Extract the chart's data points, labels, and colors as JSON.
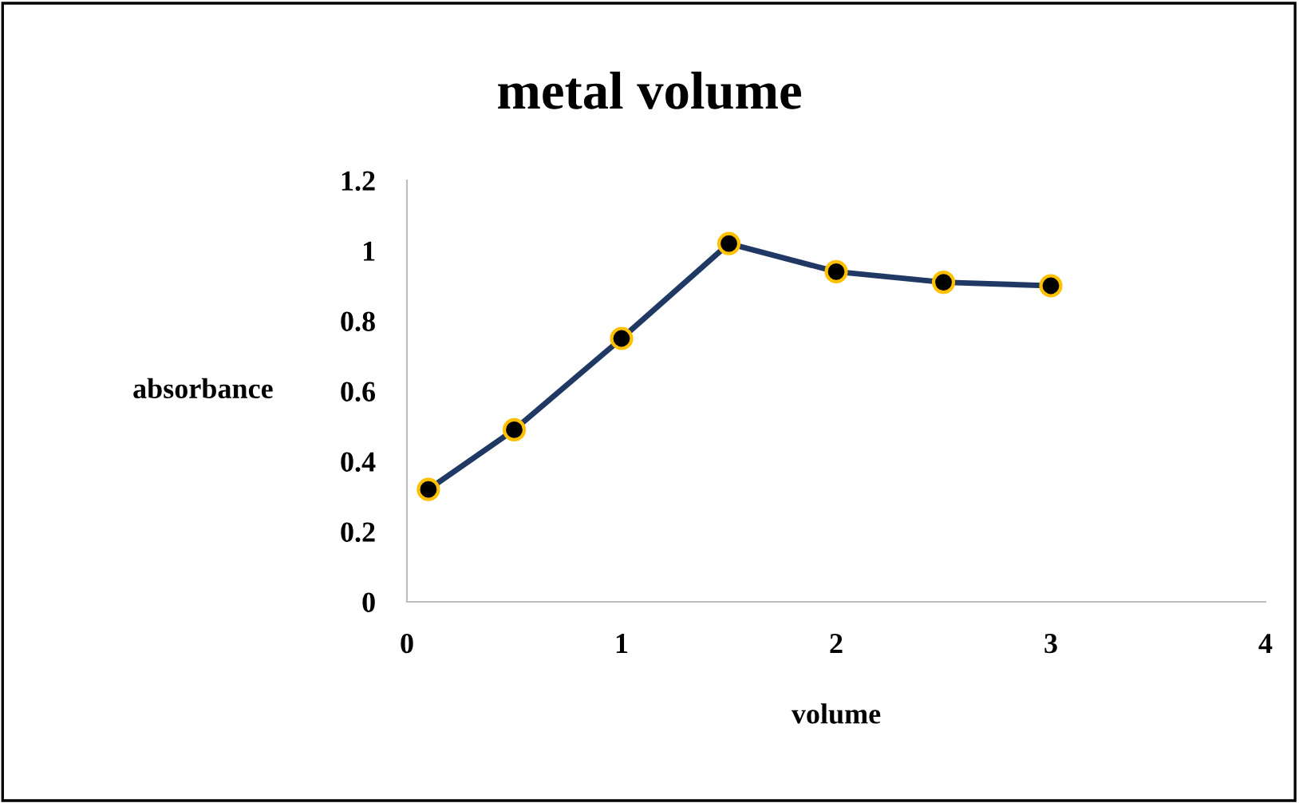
{
  "chart_data": {
    "type": "line",
    "title": "metal volume",
    "xlabel": "volume",
    "ylabel": "absorbance",
    "x": [
      0.1,
      0.5,
      1,
      1.5,
      2,
      2.5,
      3
    ],
    "series": [
      {
        "color": "#1f3864",
        "values": [
          0.32,
          0.49,
          0.75,
          1.02,
          0.94,
          0.91,
          0.9
        ]
      }
    ],
    "xlim": [
      0,
      4
    ],
    "xticks": [
      0,
      1,
      2,
      3,
      4
    ],
    "ylim": [
      0,
      1.2
    ],
    "yticks": [
      0,
      0.2,
      0.4,
      0.6,
      0.8,
      1,
      1.2
    ],
    "marker": "circle",
    "line_style": "solid",
    "grid": false,
    "legend": false
  }
}
